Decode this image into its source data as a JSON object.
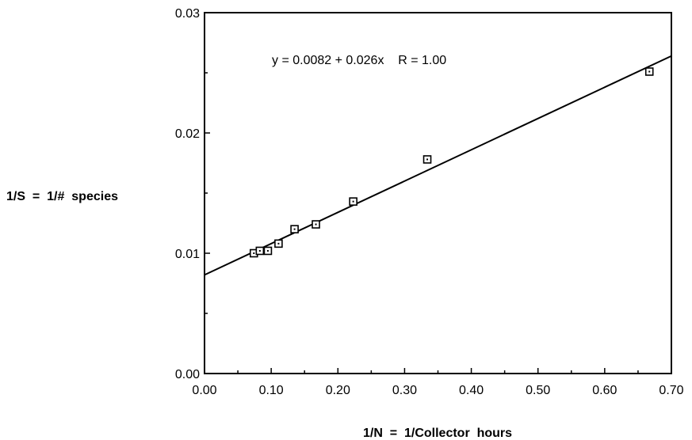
{
  "chart_data": {
    "type": "scatter",
    "xlabel": "1/N  =  1/Collector  hours",
    "ylabel": "1/S  =  1/#  species",
    "annotation": "y = 0.0082 + 0.026x    R = 1.00",
    "xlim": [
      0.0,
      0.7
    ],
    "ylim": [
      0.0,
      0.03
    ],
    "x_ticks": [
      "0.00",
      "0.10",
      "0.20",
      "0.30",
      "0.40",
      "0.50",
      "0.60",
      "0.70"
    ],
    "y_ticks": [
      "0.00",
      "0.01",
      "0.02",
      "0.03"
    ],
    "series": [
      {
        "marker": "open-square",
        "x": [
          0.074,
          0.083,
          0.095,
          0.111,
          0.135,
          0.167,
          0.223,
          0.334,
          0.667
        ],
        "y": [
          0.01,
          0.0102,
          0.0102,
          0.0108,
          0.012,
          0.0124,
          0.0143,
          0.0178,
          0.0251
        ]
      }
    ],
    "fit_line": {
      "intercept": 0.0082,
      "slope": 0.026,
      "x_range": [
        0.0,
        0.7
      ]
    },
    "grid": false,
    "legend": "none"
  }
}
